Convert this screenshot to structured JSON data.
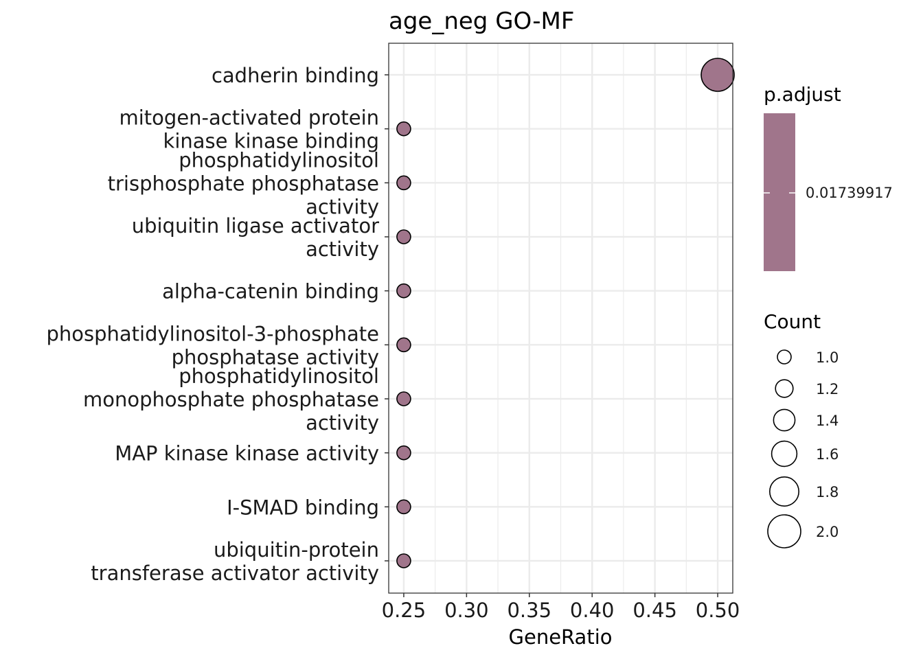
{
  "chart_data": {
    "type": "scatter",
    "title": "age_neg GO-MF",
    "xlabel": "GeneRatio",
    "ylabel": "",
    "xlim": [
      0.238,
      0.512
    ],
    "xticks": [
      "0.25",
      "0.30",
      "0.35",
      "0.40",
      "0.45",
      "0.50"
    ],
    "grid": true,
    "categories": [
      [
        "cadherin binding"
      ],
      [
        "mitogen-activated protein",
        "kinase kinase binding"
      ],
      [
        "phosphatidylinositol",
        "trisphosphate phosphatase",
        "activity"
      ],
      [
        "ubiquitin ligase activator",
        "activity"
      ],
      [
        "alpha-catenin binding"
      ],
      [
        "phosphatidylinositol-3-phosphate",
        "phosphatase activity"
      ],
      [
        "phosphatidylinositol",
        "monophosphate phosphatase",
        "activity"
      ],
      [
        "MAP kinase kinase activity"
      ],
      [
        "I-SMAD binding"
      ],
      [
        "ubiquitin-protein",
        "transferase activator activity"
      ]
    ],
    "points": [
      {
        "gene_ratio": 0.5,
        "count": 2,
        "p_adjust": 0.01739917
      },
      {
        "gene_ratio": 0.25,
        "count": 1,
        "p_adjust": 0.01739917
      },
      {
        "gene_ratio": 0.25,
        "count": 1,
        "p_adjust": 0.01739917
      },
      {
        "gene_ratio": 0.25,
        "count": 1,
        "p_adjust": 0.01739917
      },
      {
        "gene_ratio": 0.25,
        "count": 1,
        "p_adjust": 0.01739917
      },
      {
        "gene_ratio": 0.25,
        "count": 1,
        "p_adjust": 0.01739917
      },
      {
        "gene_ratio": 0.25,
        "count": 1,
        "p_adjust": 0.01739917
      },
      {
        "gene_ratio": 0.25,
        "count": 1,
        "p_adjust": 0.01739917
      },
      {
        "gene_ratio": 0.25,
        "count": 1,
        "p_adjust": 0.01739917
      },
      {
        "gene_ratio": 0.25,
        "count": 1,
        "p_adjust": 0.01739917
      }
    ],
    "point_color": "#A0758B",
    "legend_color": {
      "title": "p.adjust",
      "label": "0.01739917",
      "color": "#A0758B"
    },
    "legend_size": {
      "title": "Count",
      "labels": [
        "1.0",
        "1.2",
        "1.4",
        "1.6",
        "1.8",
        "2.0"
      ],
      "values": [
        1.0,
        1.2,
        1.4,
        1.6,
        1.8,
        2.0
      ]
    },
    "legend_position": "right"
  }
}
